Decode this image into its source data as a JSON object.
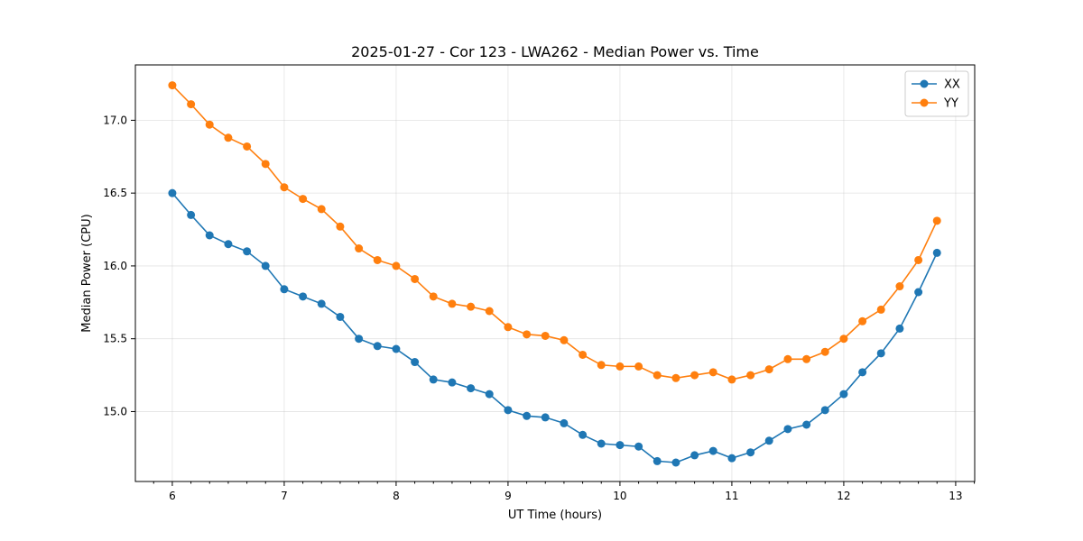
{
  "chart_data": {
    "type": "line",
    "title": "2025-01-27 - Cor 123 - LWA262 - Median Power vs. Time",
    "xlabel": "UT Time (hours)",
    "ylabel": "Median Power (CPU)",
    "xlim": [
      5.67,
      13.17
    ],
    "ylim": [
      14.52,
      17.38
    ],
    "x_ticks": [
      6,
      7,
      8,
      9,
      10,
      11,
      12,
      13
    ],
    "x_tick_labels": [
      "6",
      "7",
      "8",
      "9",
      "10",
      "11",
      "12",
      "13"
    ],
    "y_ticks": [
      15.0,
      15.5,
      16.0,
      16.5,
      17.0
    ],
    "y_tick_labels": [
      "15.0",
      "15.5",
      "16.0",
      "16.5",
      "17.0"
    ],
    "grid": true,
    "legend_position": "top-right",
    "x": [
      6.0,
      6.167,
      6.333,
      6.5,
      6.667,
      6.833,
      7.0,
      7.167,
      7.333,
      7.5,
      7.667,
      7.833,
      8.0,
      8.167,
      8.333,
      8.5,
      8.667,
      8.833,
      9.0,
      9.167,
      9.333,
      9.5,
      9.667,
      9.833,
      10.0,
      10.167,
      10.333,
      10.5,
      10.667,
      10.833,
      11.0,
      11.167,
      11.333,
      11.5,
      11.667,
      11.833,
      12.0,
      12.167,
      12.333,
      12.5,
      12.667,
      12.833
    ],
    "series": [
      {
        "name": "XX",
        "color": "#1f77b4",
        "values": [
          16.5,
          16.35,
          16.21,
          16.15,
          16.1,
          16.0,
          15.84,
          15.79,
          15.74,
          15.65,
          15.5,
          15.45,
          15.43,
          15.34,
          15.22,
          15.2,
          15.16,
          15.12,
          15.01,
          14.97,
          14.96,
          14.92,
          14.84,
          14.78,
          14.77,
          14.76,
          14.66,
          14.65,
          14.7,
          14.73,
          14.68,
          14.72,
          14.8,
          14.88,
          14.91,
          15.01,
          15.12,
          15.27,
          15.4,
          15.57,
          15.82,
          16.09
        ]
      },
      {
        "name": "YY",
        "color": "#ff7f0e",
        "values": [
          17.24,
          17.11,
          16.97,
          16.88,
          16.82,
          16.7,
          16.54,
          16.46,
          16.39,
          16.27,
          16.12,
          16.04,
          16.0,
          15.91,
          15.79,
          15.74,
          15.72,
          15.69,
          15.58,
          15.53,
          15.52,
          15.49,
          15.39,
          15.32,
          15.31,
          15.31,
          15.25,
          15.23,
          15.25,
          15.27,
          15.22,
          15.25,
          15.29,
          15.36,
          15.36,
          15.41,
          15.5,
          15.62,
          15.7,
          15.86,
          16.04,
          16.31
        ]
      }
    ]
  }
}
